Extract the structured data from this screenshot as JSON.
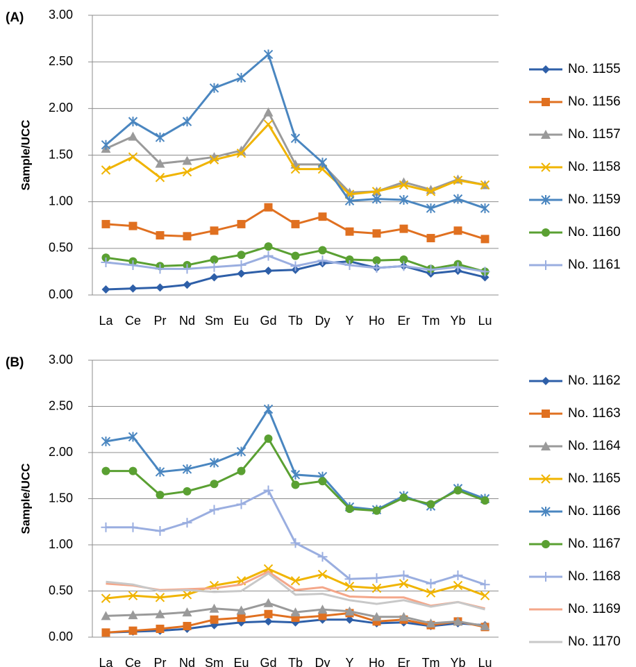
{
  "chart_data": [
    {
      "type": "line",
      "panel_label": "(A)",
      "y_label": "Sample/UCC",
      "categories": [
        "La",
        "Ce",
        "Pr",
        "Nd",
        "Sm",
        "Eu",
        "Gd",
        "Tb",
        "Dy",
        "Y",
        "Ho",
        "Er",
        "Tm",
        "Yb",
        "Lu"
      ],
      "ylim": [
        0,
        3
      ],
      "yticks": [
        {
          "value": 0,
          "label": "0.00"
        },
        {
          "value": 0.5,
          "label": "0.50"
        },
        {
          "value": 1,
          "label": "1.00"
        },
        {
          "value": 1.5,
          "label": "1.50"
        },
        {
          "value": 2,
          "label": "2.00"
        },
        {
          "value": 2.5,
          "label": "2.50"
        },
        {
          "value": 3,
          "label": "3.00"
        }
      ],
      "grid": true,
      "legend": "right",
      "series": [
        {
          "name": "No. 1155",
          "color": "#2e5fa8",
          "marker": "diamond",
          "values": [
            0.06,
            0.07,
            0.08,
            0.11,
            0.19,
            0.23,
            0.26,
            0.27,
            0.34,
            0.36,
            0.29,
            0.31,
            0.23,
            0.26,
            0.19
          ]
        },
        {
          "name": "No. 1156",
          "color": "#e07020",
          "marker": "square",
          "values": [
            0.76,
            0.74,
            0.64,
            0.63,
            0.69,
            0.76,
            0.94,
            0.76,
            0.84,
            0.68,
            0.66,
            0.71,
            0.61,
            0.69,
            0.6
          ]
        },
        {
          "name": "No. 1157",
          "color": "#9a9a9a",
          "marker": "triangle",
          "values": [
            1.57,
            1.7,
            1.41,
            1.44,
            1.48,
            1.55,
            1.96,
            1.4,
            1.4,
            1.1,
            1.11,
            1.21,
            1.13,
            1.24,
            1.18
          ]
        },
        {
          "name": "No. 1158",
          "color": "#f0b400",
          "marker": "x",
          "values": [
            1.34,
            1.48,
            1.26,
            1.32,
            1.45,
            1.52,
            1.83,
            1.35,
            1.35,
            1.08,
            1.11,
            1.18,
            1.11,
            1.23,
            1.18
          ]
        },
        {
          "name": "No. 1159",
          "color": "#4a86c0",
          "marker": "star",
          "values": [
            1.61,
            1.86,
            1.69,
            1.86,
            2.22,
            2.33,
            2.58,
            1.68,
            1.42,
            1.01,
            1.03,
            1.02,
            0.93,
            1.03,
            0.93
          ]
        },
        {
          "name": "No. 1160",
          "color": "#5aa032",
          "marker": "circle",
          "values": [
            0.4,
            0.36,
            0.31,
            0.32,
            0.38,
            0.43,
            0.52,
            0.42,
            0.48,
            0.38,
            0.37,
            0.38,
            0.28,
            0.33,
            0.25
          ]
        },
        {
          "name": "No. 1161",
          "color": "#9aaee0",
          "marker": "plus",
          "values": [
            0.35,
            0.32,
            0.28,
            0.28,
            0.3,
            0.32,
            0.42,
            0.31,
            0.37,
            0.32,
            0.29,
            0.31,
            0.27,
            0.3,
            0.25
          ]
        }
      ]
    },
    {
      "type": "line",
      "panel_label": "(B)",
      "y_label": "Sample/UCC",
      "categories": [
        "La",
        "Ce",
        "Pr",
        "Nd",
        "Sm",
        "Eu",
        "Gd",
        "Tb",
        "Dy",
        "Y",
        "Ho",
        "Er",
        "Tm",
        "Yb",
        "Lu"
      ],
      "ylim": [
        0,
        3
      ],
      "yticks": [
        {
          "value": 0,
          "label": "0.00"
        },
        {
          "value": 0.5,
          "label": "0.50"
        },
        {
          "value": 1,
          "label": "1.00"
        },
        {
          "value": 1.5,
          "label": "1.50"
        },
        {
          "value": 2,
          "label": "2.00"
        },
        {
          "value": 2.5,
          "label": "2.50"
        },
        {
          "value": 3,
          "label": "3.00"
        }
      ],
      "grid": true,
      "legend": "right",
      "series": [
        {
          "name": "No. 1162",
          "color": "#2e5fa8",
          "marker": "diamond",
          "values": [
            0.05,
            0.06,
            0.07,
            0.09,
            0.13,
            0.16,
            0.17,
            0.16,
            0.19,
            0.19,
            0.15,
            0.16,
            0.12,
            0.15,
            0.13
          ]
        },
        {
          "name": "No. 1163",
          "color": "#e07020",
          "marker": "square",
          "values": [
            0.05,
            0.07,
            0.09,
            0.12,
            0.19,
            0.21,
            0.25,
            0.21,
            0.23,
            0.26,
            0.17,
            0.19,
            0.13,
            0.17,
            0.11
          ]
        },
        {
          "name": "No. 1164",
          "color": "#9a9a9a",
          "marker": "triangle",
          "values": [
            0.23,
            0.24,
            0.25,
            0.27,
            0.31,
            0.29,
            0.37,
            0.27,
            0.3,
            0.28,
            0.22,
            0.22,
            0.15,
            0.17,
            0.12
          ]
        },
        {
          "name": "No. 1165",
          "color": "#f0b400",
          "marker": "x",
          "values": [
            0.42,
            0.45,
            0.43,
            0.46,
            0.56,
            0.61,
            0.74,
            0.61,
            0.68,
            0.55,
            0.53,
            0.58,
            0.48,
            0.56,
            0.45
          ]
        },
        {
          "name": "No. 1166",
          "color": "#4a86c0",
          "marker": "star",
          "values": [
            2.12,
            2.17,
            1.79,
            1.82,
            1.89,
            2.01,
            2.47,
            1.76,
            1.74,
            1.41,
            1.38,
            1.53,
            1.42,
            1.61,
            1.5
          ]
        },
        {
          "name": "No. 1167",
          "color": "#5aa032",
          "marker": "circle",
          "values": [
            1.8,
            1.8,
            1.54,
            1.58,
            1.66,
            1.8,
            2.15,
            1.65,
            1.69,
            1.39,
            1.37,
            1.51,
            1.44,
            1.59,
            1.48
          ]
        },
        {
          "name": "No. 1168",
          "color": "#9aaee0",
          "marker": "plus",
          "values": [
            1.19,
            1.19,
            1.15,
            1.24,
            1.38,
            1.44,
            1.59,
            1.02,
            0.87,
            0.63,
            0.64,
            0.67,
            0.58,
            0.67,
            0.57
          ]
        },
        {
          "name": "No. 1169",
          "color": "#f4a78a",
          "marker": "none",
          "values": [
            0.58,
            0.56,
            0.51,
            0.52,
            0.53,
            0.57,
            0.71,
            0.51,
            0.54,
            0.44,
            0.43,
            0.43,
            0.34,
            0.38,
            0.31
          ]
        },
        {
          "name": "No. 1170",
          "color": "#c8c8c8",
          "marker": "none",
          "values": [
            0.6,
            0.57,
            0.5,
            0.51,
            0.49,
            0.5,
            0.69,
            0.46,
            0.47,
            0.4,
            0.36,
            0.4,
            0.33,
            0.38,
            0.3
          ]
        }
      ]
    }
  ]
}
